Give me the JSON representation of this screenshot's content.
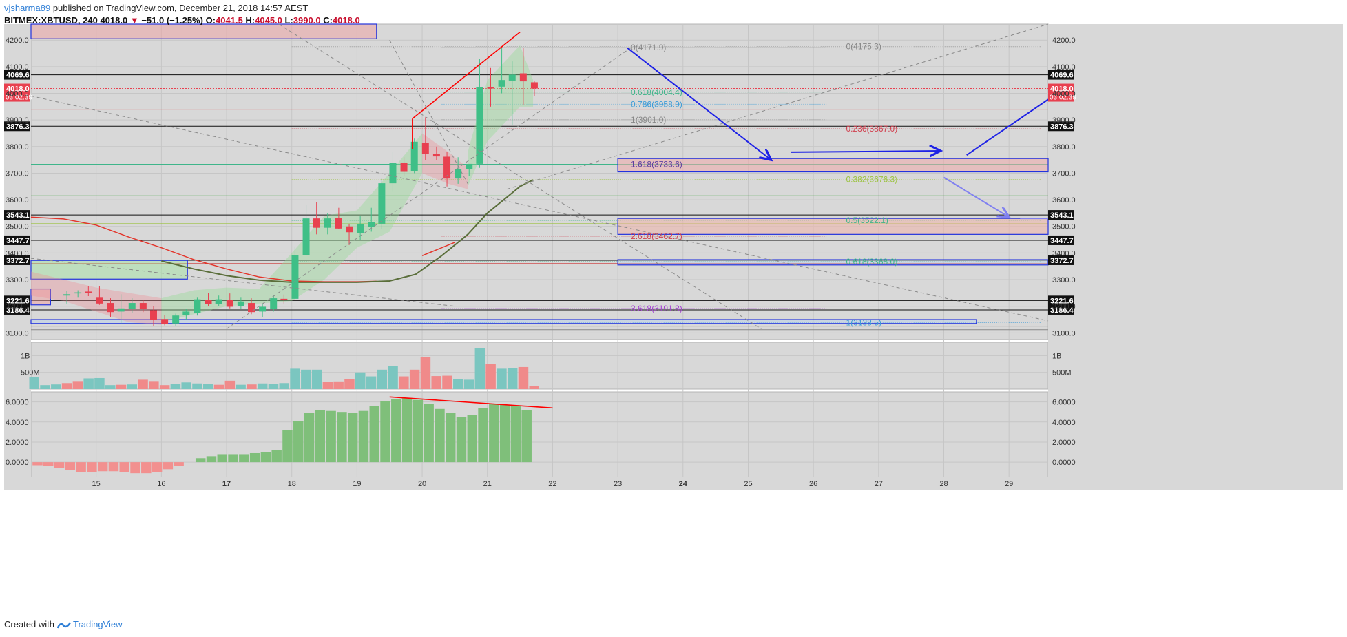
{
  "header": {
    "author": "vjsharma89",
    "published": "published on TradingView.com, December 21, 2018 14:57 AEST",
    "symbol": "BITMEX:XBTUSD, 240",
    "last": "4018.0",
    "change_arrow": "▼",
    "change": "−51.0 (−1.25%)",
    "o_label": "O:",
    "o": "4041.5",
    "h_label": "H:",
    "h": "4045.0",
    "l_label": "L:",
    "l": "3990.0",
    "c_label": "C:",
    "c": "4018.0"
  },
  "footer": {
    "created": "Created with",
    "brand": "TradingView",
    "logo": "tradingview-logo-icon"
  },
  "colors": {
    "bg": "#d8d8d8",
    "up": "#3fbf87",
    "down": "#e8404f",
    "fib_line": "#999999",
    "arrow": "#1e22e6",
    "trend": "#ff0000",
    "ma_red": "#e3352b",
    "ma_green": "#5a6e3a",
    "vol_up": "#7bc6c0",
    "vol_down": "#f08a8a",
    "osc_up": "#7fbf7a",
    "osc_down": "#f2908f"
  },
  "chart_data": [
    {
      "type": "candlestick",
      "title": "BITMEX:XBTUSD, 240",
      "x_tick_labels": [
        "15",
        "16",
        "17",
        "18",
        "19",
        "20",
        "21",
        "22",
        "23",
        "24",
        "25",
        "26",
        "27",
        "28",
        "29"
      ],
      "y_tick_labels": [
        "4200.0",
        "4100.0",
        "4000.0",
        "3900.0",
        "3800.0",
        "3700.0",
        "3600.0",
        "3500.0",
        "3400.0",
        "3300.0",
        "3200.0",
        "3100.0"
      ],
      "ylim": [
        3075,
        4260
      ],
      "last_price": {
        "value": 4018.0,
        "countdown": "03:02:39"
      },
      "candles": [
        {
          "x": 14.55,
          "o": 3240,
          "h": 3258,
          "l": 3210,
          "c": 3245
        },
        {
          "x": 14.72,
          "o": 3248,
          "h": 3260,
          "l": 3232,
          "c": 3252
        },
        {
          "x": 14.88,
          "o": 3255,
          "h": 3275,
          "l": 3238,
          "c": 3250
        },
        {
          "x": 15.05,
          "o": 3232,
          "h": 3275,
          "l": 3205,
          "c": 3210
        },
        {
          "x": 15.22,
          "o": 3212,
          "h": 3230,
          "l": 3160,
          "c": 3178
        },
        {
          "x": 15.38,
          "o": 3180,
          "h": 3245,
          "l": 3132,
          "c": 3192
        },
        {
          "x": 15.55,
          "o": 3190,
          "h": 3230,
          "l": 3175,
          "c": 3212
        },
        {
          "x": 15.72,
          "o": 3212,
          "h": 3225,
          "l": 3178,
          "c": 3190
        },
        {
          "x": 15.88,
          "o": 3185,
          "h": 3200,
          "l": 3125,
          "c": 3150
        },
        {
          "x": 16.05,
          "o": 3152,
          "h": 3168,
          "l": 3128,
          "c": 3132
        },
        {
          "x": 16.22,
          "o": 3135,
          "h": 3172,
          "l": 3125,
          "c": 3165
        },
        {
          "x": 16.38,
          "o": 3168,
          "h": 3190,
          "l": 3150,
          "c": 3180
        },
        {
          "x": 16.55,
          "o": 3175,
          "h": 3232,
          "l": 3165,
          "c": 3226
        },
        {
          "x": 16.72,
          "o": 3225,
          "h": 3250,
          "l": 3200,
          "c": 3208
        },
        {
          "x": 16.88,
          "o": 3208,
          "h": 3240,
          "l": 3200,
          "c": 3226
        },
        {
          "x": 17.05,
          "o": 3224,
          "h": 3248,
          "l": 3192,
          "c": 3198
        },
        {
          "x": 17.22,
          "o": 3200,
          "h": 3232,
          "l": 3190,
          "c": 3218
        },
        {
          "x": 17.38,
          "o": 3212,
          "h": 3230,
          "l": 3170,
          "c": 3178
        },
        {
          "x": 17.55,
          "o": 3180,
          "h": 3210,
          "l": 3160,
          "c": 3198
        },
        {
          "x": 17.72,
          "o": 3190,
          "h": 3240,
          "l": 3180,
          "c": 3230
        },
        {
          "x": 17.88,
          "o": 3228,
          "h": 3244,
          "l": 3210,
          "c": 3225
        },
        {
          "x": 18.05,
          "o": 3228,
          "h": 3425,
          "l": 3222,
          "c": 3392
        },
        {
          "x": 18.22,
          "o": 3393,
          "h": 3580,
          "l": 3390,
          "c": 3530
        },
        {
          "x": 18.38,
          "o": 3530,
          "h": 3592,
          "l": 3470,
          "c": 3495
        },
        {
          "x": 18.55,
          "o": 3495,
          "h": 3550,
          "l": 3470,
          "c": 3530
        },
        {
          "x": 18.72,
          "o": 3532,
          "h": 3570,
          "l": 3490,
          "c": 3492
        },
        {
          "x": 18.88,
          "o": 3500,
          "h": 3510,
          "l": 3430,
          "c": 3478
        },
        {
          "x": 19.05,
          "o": 3475,
          "h": 3538,
          "l": 3450,
          "c": 3508
        },
        {
          "x": 19.22,
          "o": 3498,
          "h": 3570,
          "l": 3480,
          "c": 3516
        },
        {
          "x": 19.38,
          "o": 3510,
          "h": 3680,
          "l": 3490,
          "c": 3662
        },
        {
          "x": 19.55,
          "o": 3662,
          "h": 3780,
          "l": 3630,
          "c": 3738
        },
        {
          "x": 19.72,
          "o": 3740,
          "h": 3760,
          "l": 3690,
          "c": 3705
        },
        {
          "x": 19.88,
          "o": 3708,
          "h": 3830,
          "l": 3700,
          "c": 3818
        },
        {
          "x": 20.05,
          "o": 3815,
          "h": 3910,
          "l": 3750,
          "c": 3772
        },
        {
          "x": 20.22,
          "o": 3773,
          "h": 3800,
          "l": 3750,
          "c": 3763
        },
        {
          "x": 20.38,
          "o": 3762,
          "h": 3780,
          "l": 3650,
          "c": 3680
        },
        {
          "x": 20.55,
          "o": 3680,
          "h": 3760,
          "l": 3660,
          "c": 3715
        },
        {
          "x": 20.72,
          "o": 3715,
          "h": 3730,
          "l": 3690,
          "c": 3735
        },
        {
          "x": 20.88,
          "o": 3735,
          "h": 4130,
          "l": 3720,
          "c": 4022
        },
        {
          "x": 21.05,
          "o": 4022,
          "h": 4095,
          "l": 3950,
          "c": 4018
        },
        {
          "x": 21.22,
          "o": 4025,
          "h": 4175,
          "l": 4000,
          "c": 4050
        },
        {
          "x": 21.38,
          "o": 4048,
          "h": 4120,
          "l": 3880,
          "c": 4070
        },
        {
          "x": 21.55,
          "o": 4075,
          "h": 4170,
          "l": 3955,
          "c": 4045
        },
        {
          "x": 21.72,
          "o": 4041.5,
          "h": 4045,
          "l": 3990,
          "c": 4018
        }
      ],
      "price_labels": [
        {
          "label": "4069.6",
          "value": 4069.6,
          "kind": "black"
        },
        {
          "label": "4018.0",
          "value": 4018.0,
          "kind": "red"
        },
        {
          "label": "3876.3",
          "value": 3876.3,
          "kind": "black"
        },
        {
          "label": "3543.1",
          "value": 3543.1,
          "kind": "black"
        },
        {
          "label": "3447.7",
          "value": 3447.7,
          "kind": "black"
        },
        {
          "label": "3372.7",
          "value": 3372.7,
          "kind": "black"
        },
        {
          "label": "3221.6",
          "value": 3221.6,
          "kind": "black"
        },
        {
          "label": "3186.4",
          "value": 3186.4,
          "kind": "black"
        }
      ],
      "annotations": [
        {
          "text": "0(4171.9)",
          "x": 23.2,
          "y": 4171.9,
          "color": "#888888"
        },
        {
          "text": "0.618(4004.4)",
          "x": 23.2,
          "y": 4004.4,
          "color": "#3fb58a"
        },
        {
          "text": "0.786(3958.9)",
          "x": 23.2,
          "y": 3958.9,
          "color": "#3a9bd8"
        },
        {
          "text": "1(3901.0)",
          "x": 23.2,
          "y": 3901.0,
          "color": "#888888"
        },
        {
          "text": "1.618(3733.6)",
          "x": 23.2,
          "y": 3733.6,
          "color": "#5a3fa0"
        },
        {
          "text": "2.618(3462.7)",
          "x": 23.2,
          "y": 3462.7,
          "color": "#d1404f"
        },
        {
          "text": "3.618(3191.8)",
          "x": 23.2,
          "y": 3191.8,
          "color": "#a23fd1"
        },
        {
          "text": "0(4175.3)",
          "x": 26.5,
          "y": 4175.3,
          "color": "#888888"
        },
        {
          "text": "0.236(3867.0)",
          "x": 26.5,
          "y": 3867.0,
          "color": "#d1404f"
        },
        {
          "text": "0.382(3676.3)",
          "x": 26.5,
          "y": 3676.3,
          "color": "#9bc23f"
        },
        {
          "text": "0.5(3522.1)",
          "x": 26.5,
          "y": 3522.1,
          "color": "#3fb58a"
        },
        {
          "text": "0.618(3368.0)",
          "x": 26.5,
          "y": 3368.0,
          "color": "#3fb58a"
        },
        {
          "text": "1(3138.5)",
          "x": 26.5,
          "y": 3138.5,
          "color": "#3a9bd8"
        }
      ]
    },
    {
      "type": "bar",
      "title": "",
      "y_tick_labels": [
        "1B",
        "500M"
      ],
      "ylim": [
        0,
        1400000000
      ],
      "values": [
        350000000.0,
        120000000.0,
        140000000.0,
        180000000.0,
        240000000.0,
        320000000.0,
        330000000.0,
        120000000.0,
        130000000.0,
        140000000.0,
        280000000.0,
        240000000.0,
        120000000.0,
        160000000.0,
        200000000.0,
        170000000.0,
        160000000.0,
        130000000.0,
        250000000.0,
        130000000.0,
        140000000.0,
        170000000.0,
        160000000.0,
        180000000.0,
        610000000.0,
        580000000.0,
        580000000.0,
        220000000.0,
        230000000.0,
        300000000.0,
        500000000.0,
        380000000.0,
        580000000.0,
        690000000.0,
        380000000.0,
        580000000.0,
        960000000.0,
        390000000.0,
        400000000.0,
        300000000.0,
        280000000.0,
        1230000000.0,
        760000000.0,
        610000000.0,
        620000000.0,
        660000000.0,
        90000000.0
      ],
      "up": [
        true,
        true,
        true,
        false,
        false,
        true,
        true,
        true,
        false,
        true,
        false,
        false,
        false,
        true,
        true,
        true,
        true,
        false,
        false,
        true,
        false,
        true,
        true,
        true,
        true,
        true,
        true,
        false,
        false,
        false,
        true,
        true,
        true,
        true,
        false,
        false,
        false,
        false,
        false,
        true,
        true,
        true,
        false,
        true,
        true,
        false,
        false
      ]
    },
    {
      "type": "bar",
      "title": "",
      "y_tick_labels": [
        "6.0000",
        "4.0000",
        "2.0000",
        "0.0000"
      ],
      "ylim": [
        -1.5,
        7.0
      ],
      "values": [
        -0.3,
        -0.4,
        -0.6,
        -0.8,
        -1.0,
        -1.0,
        -0.9,
        -0.9,
        -1.0,
        -1.1,
        -1.1,
        -1.0,
        -0.7,
        -0.4,
        0.0,
        0.4,
        0.6,
        0.8,
        0.8,
        0.8,
        0.9,
        1.0,
        1.2,
        3.2,
        4.1,
        4.9,
        5.2,
        5.1,
        5.0,
        4.9,
        5.1,
        5.6,
        6.1,
        6.3,
        6.4,
        6.2,
        5.8,
        5.3,
        4.9,
        4.5,
        4.7,
        5.4,
        5.8,
        5.7,
        5.6,
        5.2
      ]
    }
  ]
}
